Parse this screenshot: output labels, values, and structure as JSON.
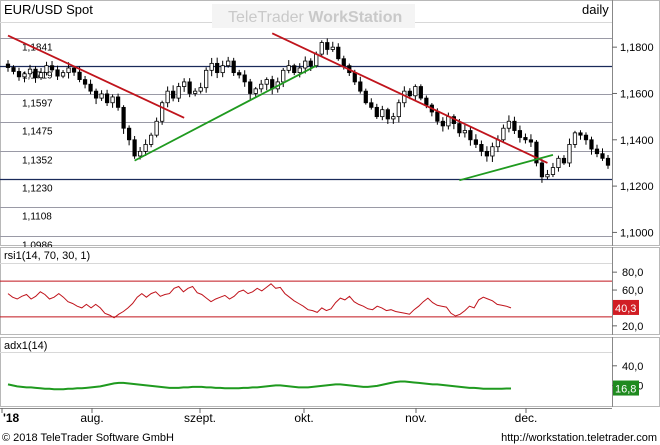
{
  "header": {
    "instrument": "EUR/USD Spot",
    "brand_plain": "TeleTrader ",
    "brand_bold": "WorkStation",
    "period": "daily"
  },
  "footer": {
    "copyright": "© 2018 TeleTrader Software GmbH",
    "url": "http://workstation.teletrader.com"
  },
  "colors": {
    "bull_candle": "#ffffff",
    "bear_candle": "#000000",
    "downtrend_line": "#c0141c",
    "uptrend_line": "#1f9a1f",
    "rsi_line": "#c0141c",
    "adx_line": "#1f9a1f",
    "rsi_badge": "#d11d24",
    "adx_badge": "#1f8a1f"
  },
  "chart_data": [
    {
      "type": "candlestick",
      "panel": "price",
      "ylim": [
        1.095,
        1.19
      ],
      "y_ticks_right": [
        "1,1800",
        "1,1600",
        "1,1400",
        "1,1200",
        "1,1000"
      ],
      "level_labels": [
        "1,1841",
        "1,1719",
        "1,1597",
        "1,1475",
        "1,1352",
        "1,1230",
        "1,1108",
        "1,0986"
      ],
      "levels": [
        1.1841,
        1.1719,
        1.1597,
        1.1475,
        1.1352,
        1.123,
        1.1108,
        1.0986
      ],
      "x_labels": [
        "'18",
        "aug.",
        "szept.",
        "okt.",
        "nov.",
        "dec."
      ],
      "closes": [
        1.1712,
        1.1695,
        1.1672,
        1.1685,
        1.1705,
        1.1668,
        1.169,
        1.172,
        1.1702,
        1.1675,
        1.169,
        1.171,
        1.1692,
        1.166,
        1.164,
        1.161,
        1.158,
        1.1598,
        1.156,
        1.1585,
        1.154,
        1.145,
        1.14,
        1.133,
        1.135,
        1.138,
        1.142,
        1.148,
        1.156,
        1.161,
        1.158,
        1.163,
        1.165,
        1.16,
        1.161,
        1.1625,
        1.17,
        1.173,
        1.169,
        1.172,
        1.174,
        1.169,
        1.168,
        1.165,
        1.16,
        1.162,
        1.164,
        1.166,
        1.162,
        1.165,
        1.17,
        1.172,
        1.169,
        1.171,
        1.174,
        1.172,
        1.177,
        1.182,
        1.179,
        1.18,
        1.175,
        1.172,
        1.169,
        1.165,
        1.161,
        1.156,
        1.154,
        1.15,
        1.153,
        1.149,
        1.15,
        1.156,
        1.161,
        1.159,
        1.163,
        1.158,
        1.155,
        1.152,
        1.148,
        1.146,
        1.15,
        1.147,
        1.143,
        1.144,
        1.14,
        1.138,
        1.135,
        1.133,
        1.137,
        1.14,
        1.145,
        1.148,
        1.144,
        1.141,
        1.14,
        1.139,
        1.13,
        1.124,
        1.125,
        1.128,
        1.132,
        1.13,
        1.138,
        1.143,
        1.142,
        1.14,
        1.136,
        1.134,
        1.132,
        1.129
      ]
    },
    {
      "type": "line",
      "panel": "rsi",
      "label": "rsi1(14, 70, 30, 1)",
      "ylim": [
        12,
        88
      ],
      "y_ticks": [
        "80,0",
        "60,0",
        "20,0"
      ],
      "reference_levels": [
        70,
        30
      ],
      "last_value_label": "40,3",
      "values": [
        56,
        52,
        50,
        53,
        55,
        50,
        53,
        58,
        55,
        50,
        52,
        56,
        52,
        47,
        45,
        42,
        40,
        44,
        40,
        44,
        40,
        34,
        32,
        29,
        33,
        36,
        40,
        45,
        52,
        56,
        52,
        56,
        58,
        53,
        55,
        56,
        62,
        64,
        58,
        62,
        64,
        57,
        55,
        51,
        47,
        50,
        52,
        54,
        50,
        53,
        58,
        60,
        56,
        58,
        62,
        59,
        63,
        67,
        62,
        63,
        56,
        52,
        48,
        45,
        42,
        38,
        37,
        35,
        40,
        37,
        39,
        46,
        51,
        49,
        53,
        47,
        44,
        42,
        39,
        38,
        42,
        40,
        37,
        38,
        36,
        35,
        34,
        33,
        38,
        42,
        47,
        51,
        46,
        43,
        42,
        41,
        34,
        31,
        33,
        37,
        42,
        40,
        49,
        52,
        50,
        48,
        44,
        43,
        42,
        40
      ]
    },
    {
      "type": "line",
      "panel": "adx",
      "label": "adx1(14)",
      "ylim": [
        0,
        50
      ],
      "y_ticks": [
        "40,0",
        "20,0"
      ],
      "last_value_label": "16,8",
      "values": [
        21,
        20,
        19,
        18.5,
        18,
        18,
        17.5,
        17,
        16.5,
        16.5,
        16,
        16,
        16,
        16.5,
        16.5,
        17,
        17,
        17.5,
        18,
        18.5,
        19,
        20,
        21,
        22,
        22.5,
        22.5,
        22,
        21.5,
        21,
        20.5,
        20,
        19.5,
        19,
        18.5,
        18,
        17.5,
        17.5,
        17.5,
        18,
        18,
        18.5,
        18.5,
        18.5,
        18,
        18,
        17.5,
        17.5,
        17,
        17,
        17,
        17,
        17.5,
        17.5,
        18,
        18,
        18.5,
        19,
        19.5,
        20,
        20,
        19.5,
        19,
        18.5,
        18,
        18,
        18,
        18.5,
        19,
        19.5,
        20,
        20.5,
        21,
        21,
        20.5,
        20,
        19.5,
        19,
        18.5,
        18.5,
        19,
        19.5,
        20.5,
        21.5,
        22.5,
        23.5,
        24,
        24,
        23.5,
        23,
        22.5,
        22,
        21.5,
        21,
        21,
        20.5,
        20,
        19.5,
        19,
        18.5,
        18,
        17.5,
        17.5,
        17,
        16.5,
        16.5,
        16.5,
        16.5,
        16.5,
        16.8,
        16.8
      ]
    }
  ]
}
